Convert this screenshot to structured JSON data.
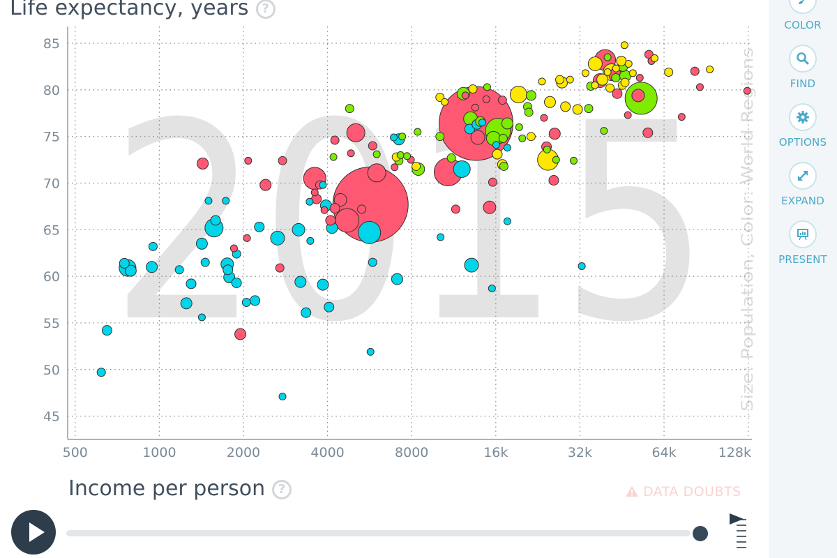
{
  "chart_data": {
    "type": "scatter",
    "title": "",
    "ylabel": "Life expectancy, years",
    "xlabel": "Income per person",
    "size_label": "Size: Population, Color: World Regions",
    "year": "2015",
    "x_scale": "log2",
    "xlim": [
      470,
      132000
    ],
    "ylim": [
      42.5,
      86.8
    ],
    "x_ticks": [
      500,
      1000,
      2000,
      4000,
      8000,
      16000,
      32000,
      64000,
      128000
    ],
    "x_tick_labels": [
      "500",
      "1000",
      "2000",
      "4000",
      "8000",
      "16k",
      "32k",
      "64k",
      "128k"
    ],
    "y_ticks": [
      45,
      50,
      55,
      60,
      65,
      70,
      75,
      80,
      85
    ],
    "y_tick_labels": [
      "45",
      "50",
      "55",
      "60",
      "65",
      "70",
      "75",
      "80",
      "85"
    ],
    "grid": true,
    "series": [
      {
        "color": "#00d5e9",
        "points": [
          [
            620,
            49.7,
            6
          ],
          [
            650,
            54.2,
            7
          ],
          [
            750,
            61.4,
            7
          ],
          [
            770,
            60.9,
            12
          ],
          [
            790,
            60.6,
            8
          ],
          [
            950,
            63.2,
            6
          ],
          [
            940,
            61.0,
            8
          ],
          [
            1180,
            60.7,
            6
          ],
          [
            1250,
            57.1,
            8
          ],
          [
            1300,
            59.2,
            7
          ],
          [
            1420,
            63.5,
            8
          ],
          [
            1420,
            55.6,
            5
          ],
          [
            1460,
            61.5,
            6
          ],
          [
            1500,
            68.1,
            5
          ],
          [
            1590,
            66.0,
            7
          ],
          [
            1570,
            65.2,
            13
          ],
          [
            1730,
            68.1,
            5
          ],
          [
            1750,
            61.3,
            9
          ],
          [
            1760,
            60.7,
            7
          ],
          [
            1780,
            59.9,
            8
          ],
          [
            1890,
            59.3,
            7
          ],
          [
            1890,
            62.4,
            6
          ],
          [
            2050,
            57.2,
            6
          ],
          [
            2200,
            57.4,
            7
          ],
          [
            2280,
            65.3,
            7
          ],
          [
            2650,
            64.1,
            10
          ],
          [
            2760,
            47.1,
            5
          ],
          [
            3150,
            65.0,
            9
          ],
          [
            3200,
            59.4,
            8
          ],
          [
            3350,
            56.1,
            7
          ],
          [
            3470,
            63.8,
            5
          ],
          [
            3450,
            68.0,
            5
          ],
          [
            3850,
            69.8,
            5
          ],
          [
            3850,
            59.1,
            8
          ],
          [
            3950,
            67.6,
            8
          ],
          [
            4050,
            56.7,
            7
          ],
          [
            4150,
            65.2,
            8
          ],
          [
            5700,
            51.9,
            5
          ],
          [
            5650,
            64.7,
            16
          ],
          [
            5800,
            61.5,
            6
          ],
          [
            6900,
            74.9,
            5
          ],
          [
            7200,
            74.7,
            8
          ],
          [
            7100,
            59.7,
            8
          ],
          [
            10150,
            64.2,
            5
          ],
          [
            12100,
            71.5,
            12
          ],
          [
            12900,
            75.8,
            7
          ],
          [
            13100,
            61.2,
            10
          ],
          [
            13700,
            76.3,
            7
          ],
          [
            14300,
            76.5,
            5
          ],
          [
            16050,
            74.1,
            5
          ],
          [
            15500,
            58.7,
            5
          ],
          [
            17600,
            73.8,
            5
          ],
          [
            17600,
            65.9,
            5
          ],
          [
            32500,
            61.1,
            5
          ]
        ]
      },
      {
        "color": "#ff5872",
        "points": [
          [
            1430,
            72.1,
            8
          ],
          [
            2060,
            64.1,
            5
          ],
          [
            2080,
            72.4,
            5
          ],
          [
            2400,
            69.8,
            8
          ],
          [
            2700,
            60.9,
            6
          ],
          [
            2760,
            72.4,
            6
          ],
          [
            1850,
            63.0,
            5
          ],
          [
            1950,
            53.8,
            8
          ],
          [
            3600,
            70.5,
            16
          ],
          [
            3750,
            69.8,
            6
          ],
          [
            3600,
            69.0,
            5
          ],
          [
            3650,
            68.3,
            7
          ],
          [
            3900,
            67.1,
            5
          ],
          [
            4100,
            66.0,
            7
          ],
          [
            4250,
            74.6,
            6
          ],
          [
            4250,
            67.3,
            7
          ],
          [
            4450,
            68.2,
            9
          ],
          [
            4700,
            66.0,
            17
          ],
          [
            5050,
            75.4,
            13
          ],
          [
            4850,
            73.2,
            5
          ],
          [
            5700,
            67.7,
            54
          ],
          [
            5300,
            67.2,
            6
          ],
          [
            5800,
            74.0,
            6
          ],
          [
            6000,
            71.1,
            13
          ],
          [
            6950,
            71.7,
            5
          ],
          [
            7950,
            72.5,
            5
          ],
          [
            10800,
            71.2,
            20
          ],
          [
            11500,
            67.2,
            6
          ],
          [
            13600,
            76.4,
            53
          ],
          [
            12450,
            79.4,
            5
          ],
          [
            13500,
            78.1,
            5
          ],
          [
            13800,
            74.9,
            10
          ],
          [
            14800,
            79.0,
            5
          ],
          [
            15200,
            67.4,
            9
          ],
          [
            15600,
            70.1,
            6
          ],
          [
            16900,
            78.9,
            6
          ],
          [
            23800,
            77.0,
            5
          ],
          [
            24300,
            73.9,
            7
          ],
          [
            26000,
            75.3,
            8
          ],
          [
            25800,
            70.3,
            7
          ],
          [
            37800,
            81.0,
            10
          ],
          [
            39400,
            83.2,
            15
          ],
          [
            42800,
            81.6,
            9
          ],
          [
            43500,
            79.6,
            7
          ],
          [
            47500,
            77.3,
            5
          ],
          [
            51700,
            79.4,
            9
          ],
          [
            52400,
            81.3,
            5
          ],
          [
            56000,
            75.4,
            7
          ],
          [
            56500,
            83.8,
            6
          ],
          [
            57700,
            83.1,
            5
          ],
          [
            74000,
            77.1,
            5
          ],
          [
            82500,
            82.0,
            6
          ],
          [
            86000,
            80.3,
            5
          ],
          [
            127000,
            79.9,
            5
          ]
        ]
      },
      {
        "color": "#7feb00",
        "points": [
          [
            4800,
            78.0,
            6
          ],
          [
            4200,
            72.8,
            5
          ],
          [
            6000,
            73.1,
            5
          ],
          [
            7200,
            72.4,
            6
          ],
          [
            7400,
            75.0,
            5
          ],
          [
            7300,
            73.0,
            5
          ],
          [
            7700,
            72.9,
            5
          ],
          [
            8400,
            75.5,
            5
          ],
          [
            8450,
            71.5,
            9
          ],
          [
            10100,
            75.0,
            6
          ],
          [
            11100,
            72.7,
            6
          ],
          [
            12250,
            79.6,
            9
          ],
          [
            13000,
            76.9,
            10
          ],
          [
            14900,
            80.3,
            5
          ],
          [
            14100,
            76.6,
            7
          ],
          [
            15700,
            74.8,
            10
          ],
          [
            16300,
            75.6,
            18
          ],
          [
            17000,
            74.8,
            6
          ],
          [
            17100,
            71.8,
            6
          ],
          [
            17600,
            76.4,
            8
          ],
          [
            19400,
            76.0,
            5
          ],
          [
            19900,
            74.8,
            5
          ],
          [
            20800,
            78.2,
            6
          ],
          [
            21000,
            77.6,
            6
          ],
          [
            21400,
            79.4,
            7
          ],
          [
            24400,
            73.6,
            5
          ],
          [
            26300,
            72.5,
            5
          ],
          [
            30400,
            72.4,
            5
          ],
          [
            34400,
            78.0,
            6
          ],
          [
            35000,
            80.4,
            6
          ],
          [
            39000,
            75.6,
            5
          ],
          [
            40200,
            83.5,
            5
          ],
          [
            43000,
            81.3,
            6
          ],
          [
            45600,
            82.5,
            7
          ],
          [
            46500,
            81.5,
            8
          ],
          [
            53000,
            79.1,
            23
          ]
        ]
      },
      {
        "color": "#ffe700",
        "points": [
          [
            7050,
            72.8,
            6
          ],
          [
            8300,
            71.8,
            6
          ],
          [
            10100,
            79.2,
            6
          ],
          [
            10500,
            78.7,
            5
          ],
          [
            13250,
            80.1,
            6
          ],
          [
            16200,
            73.1,
            7
          ],
          [
            16900,
            72.0,
            7
          ],
          [
            19300,
            79.5,
            12
          ],
          [
            21400,
            75.0,
            6
          ],
          [
            23400,
            80.9,
            5
          ],
          [
            24600,
            72.5,
            15
          ],
          [
            25000,
            78.7,
            8
          ],
          [
            27100,
            81.1,
            6
          ],
          [
            27600,
            80.8,
            8
          ],
          [
            28400,
            78.2,
            7
          ],
          [
            29500,
            81.1,
            5
          ],
          [
            31400,
            77.9,
            7
          ],
          [
            33500,
            81.8,
            5
          ],
          [
            36300,
            82.8,
            10
          ],
          [
            36200,
            80.5,
            5
          ],
          [
            38500,
            81.1,
            8
          ],
          [
            40200,
            81.9,
            5
          ],
          [
            41500,
            81.9,
            12
          ],
          [
            41000,
            80.2,
            6
          ],
          [
            43100,
            82.3,
            5
          ],
          [
            45000,
            83.1,
            7
          ],
          [
            45400,
            80.5,
            6
          ],
          [
            46200,
            84.8,
            5
          ],
          [
            46400,
            80.8,
            6
          ],
          [
            49500,
            81.8,
            5
          ],
          [
            59200,
            83.4,
            5
          ],
          [
            66500,
            81.9,
            6
          ],
          [
            93300,
            82.2,
            5
          ],
          [
            47800,
            82.8,
            5
          ]
        ]
      }
    ]
  },
  "help_icon": "question-mark-icon",
  "data_doubts": {
    "label": "DATA DOUBTS",
    "icon": "warning-triangle-icon"
  },
  "sidebar": {
    "items": [
      {
        "label": "COLOR",
        "icon": "paint-brush-icon"
      },
      {
        "label": "FIND",
        "icon": "magnifier-icon"
      },
      {
        "label": "OPTIONS",
        "icon": "gear-icon"
      },
      {
        "label": "EXPAND",
        "icon": "expand-arrows-icon"
      },
      {
        "label": "PRESENT",
        "icon": "presentation-icon"
      }
    ]
  },
  "timeline": {
    "play_icon": "play-icon",
    "speed_icon": "speed-flag-icon",
    "progress": 1.0
  },
  "colors": {
    "asia": "#ff5872",
    "africa": "#00d5e9",
    "americas": "#7feb00",
    "europe": "#ffe700",
    "text": "#414f5e",
    "accent": "#49a9c9"
  }
}
